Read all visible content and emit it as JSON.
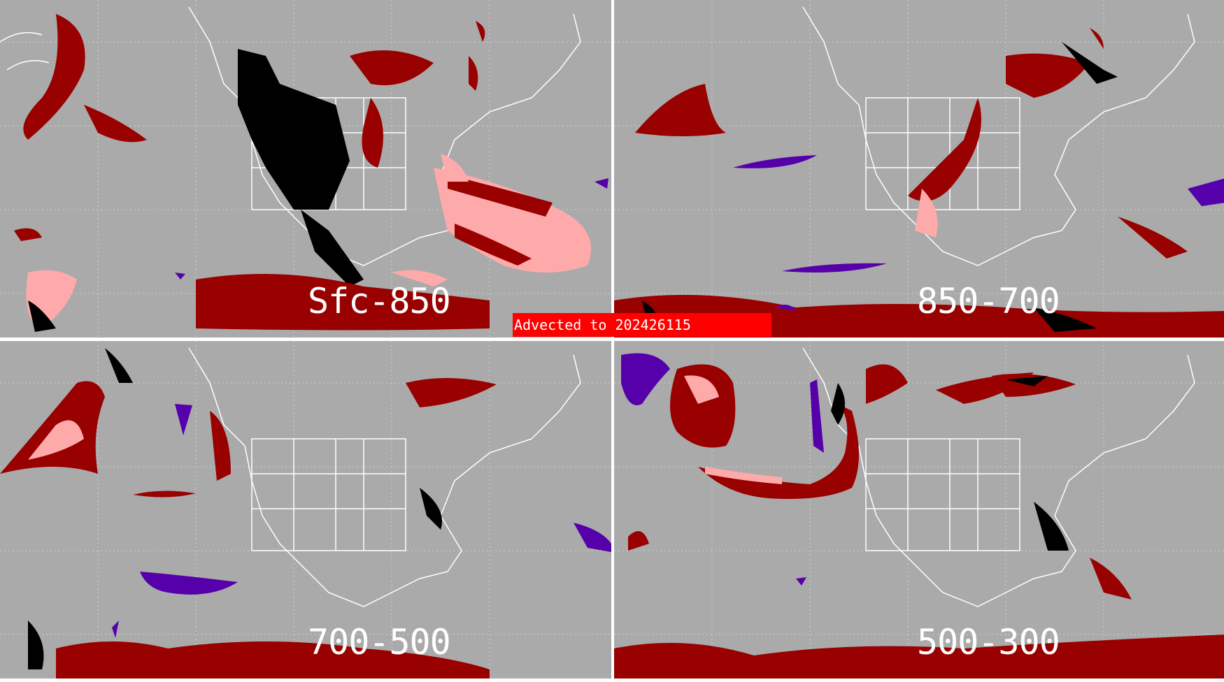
{
  "banner": {
    "text": "Advected to  202426115"
  },
  "panels": [
    {
      "id": "top-left",
      "label": "Sfc-850"
    },
    {
      "id": "top-right",
      "label": "850-700"
    },
    {
      "id": "bottom-left",
      "label": "700-500"
    },
    {
      "id": "bottom-right",
      "label": "500-300"
    }
  ],
  "colors": {
    "background": "#aaaaaa",
    "coastline": "#ffffff",
    "grid": "#d0d0d0",
    "dark_red": "#990000",
    "pink": "#ffaaaa",
    "black": "#000000",
    "purple": "#5500aa",
    "banner": "#ff0000"
  }
}
